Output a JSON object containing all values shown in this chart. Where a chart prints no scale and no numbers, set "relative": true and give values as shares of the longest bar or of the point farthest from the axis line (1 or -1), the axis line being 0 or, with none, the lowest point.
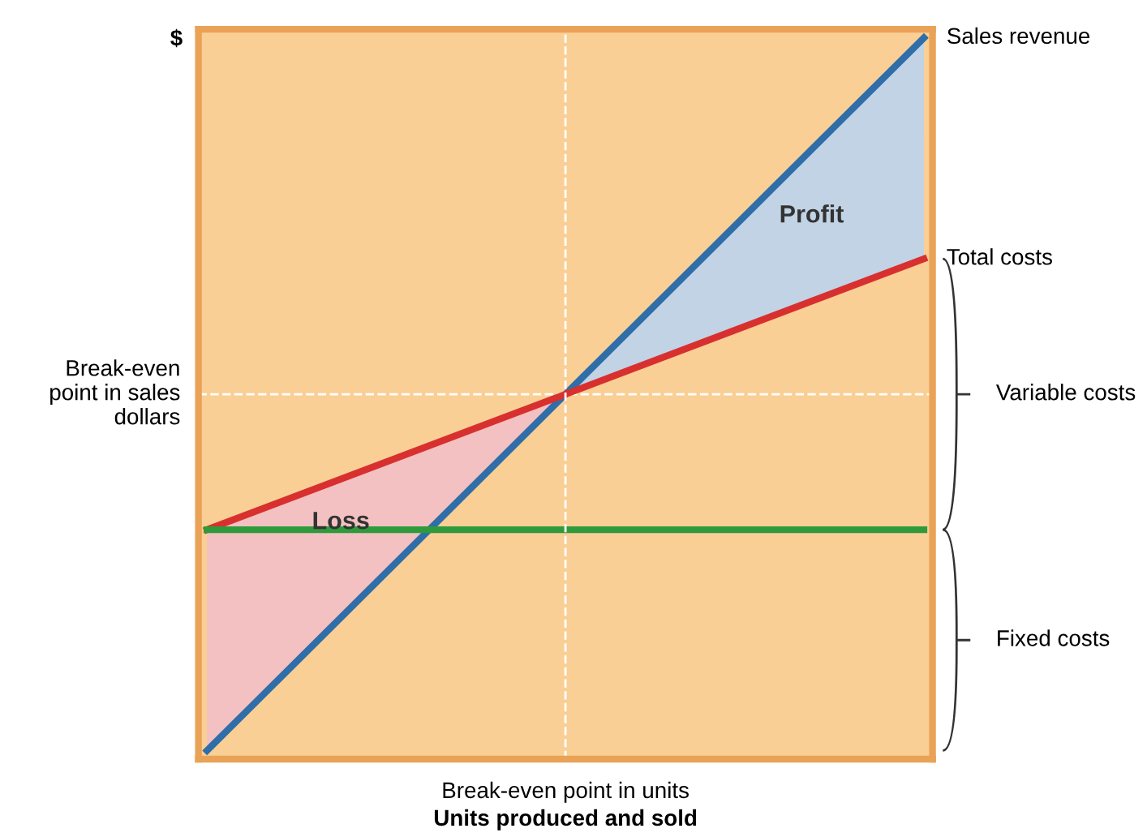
{
  "chart_data": {
    "type": "line",
    "relative": true,
    "ylabel": "$",
    "xlabel": "Units produced and sold",
    "categories": [
      null,
      null,
      null
    ],
    "series": [
      {
        "name": "Sales revenue",
        "color": "#2f6ea8",
        "values": [
          0,
          0.5,
          1
        ],
        "lower": [
          null,
          0.5,
          0.69
        ],
        "upper": [
          null,
          0.5,
          1
        ]
      },
      {
        "name": "Total costs",
        "color": "#d8302f",
        "values": [
          0.31,
          0.5,
          0.69
        ],
        "lower": [
          0,
          0.5,
          null
        ],
        "upper": [
          0.31,
          0.5,
          null
        ]
      },
      {
        "color": "#2e9a3c",
        "values": [
          0.31,
          0.31,
          0.31
        ]
      }
    ],
    "ref_lines": [
      {
        "axis": "y",
        "value": 0.5,
        "label": "Break-even\npoint in sales\ndollars",
        "color": "#ffffff",
        "line_style": "dashed"
      }
    ],
    "annotations": [
      "Profit",
      "Loss",
      "Variable costs",
      "Fixed costs",
      "Break-even point in units"
    ],
    "legend": false,
    "marker": "none",
    "line_style": "solid"
  }
}
